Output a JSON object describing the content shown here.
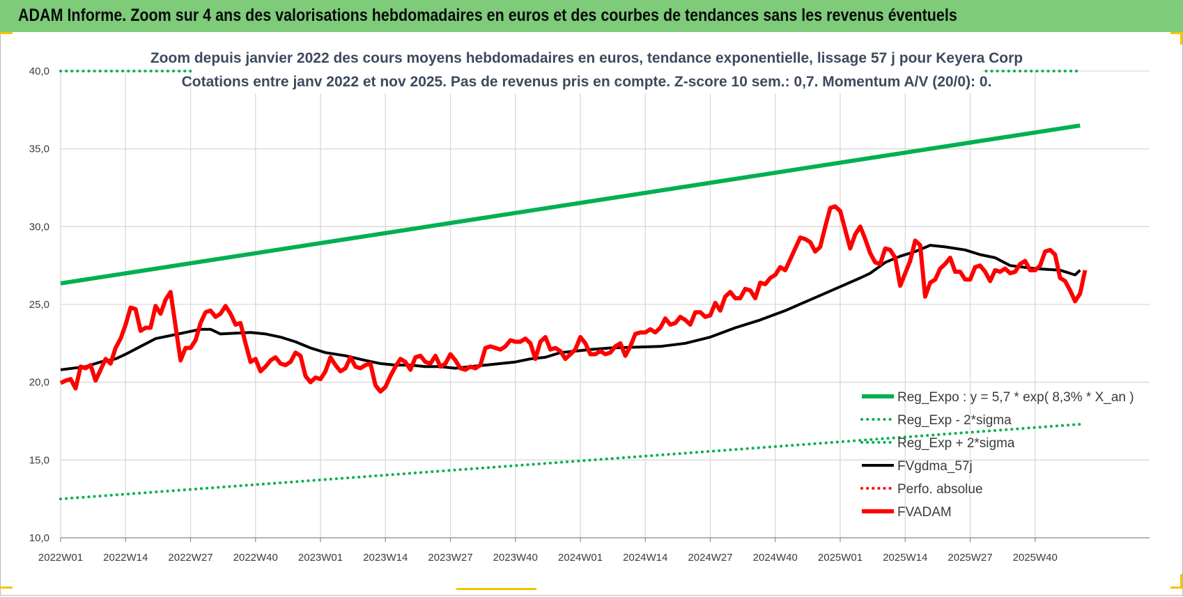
{
  "banner": {
    "title": "ADAM Informe. Zoom sur 4 ans des valorisations hebdomadaires en euros et des courbes de tendances sans les revenus éventuels",
    "color": "#7ecb7a"
  },
  "chart_data": {
    "type": "line",
    "title": "Zoom depuis janvier 2022 des cours moyens hebdomadaires en euros, tendance exponentielle, lissage 57 j pour Keyera Corp",
    "subtitle": "Cotations entre janv 2022 et nov 2025. Pas de revenus pris en compte. Z-score 10 sem.: 0,7. Momentum A/V (20/0): 0.",
    "x_ticks": [
      "2022W01",
      "2022W14",
      "2022W27",
      "2022W40",
      "2023W01",
      "2023W14",
      "2023W27",
      "2023W40",
      "2024W01",
      "2024W14",
      "2024W27",
      "2024W40",
      "2025W01",
      "2025W14",
      "2025W27",
      "2025W40"
    ],
    "x_range_weeks": [
      0,
      204
    ],
    "ylim": [
      10,
      40
    ],
    "y_ticks": [
      "10,0",
      "15,0",
      "20,0",
      "25,0",
      "30,0",
      "35,0",
      "40,0"
    ],
    "grid": true,
    "series": [
      {
        "name": "Reg_Expo : y = 5,7 * exp( 8,3% *  X_an )",
        "style": "solid",
        "color": "#00b050",
        "width": 6,
        "points": [
          [
            0,
            26.35
          ],
          [
            204,
            36.5
          ]
        ]
      },
      {
        "name": "Reg_Exp - 2*sigma",
        "style": "dotted",
        "color": "#00b050",
        "width": 4,
        "points": [
          [
            0,
            12.5
          ],
          [
            204,
            17.3
          ]
        ]
      },
      {
        "name": "Reg_Exp + 2*sigma",
        "style": "dotted",
        "color": "#00b050",
        "width": 4,
        "points": [
          [
            0,
            40.0
          ],
          [
            204,
            40.0
          ]
        ]
      },
      {
        "name": "FVgdma_57j",
        "style": "solid",
        "color": "#000000",
        "width": 4,
        "points": [
          [
            0,
            20.8
          ],
          [
            5,
            21.0
          ],
          [
            8,
            21.3
          ],
          [
            11,
            21.5
          ],
          [
            13,
            21.8
          ],
          [
            16,
            22.3
          ],
          [
            19,
            22.8
          ],
          [
            22,
            23.0
          ],
          [
            25,
            23.2
          ],
          [
            28,
            23.4
          ],
          [
            30,
            23.4
          ],
          [
            32,
            23.1
          ],
          [
            35,
            23.15
          ],
          [
            38,
            23.2
          ],
          [
            41,
            23.1
          ],
          [
            44,
            22.9
          ],
          [
            47,
            22.6
          ],
          [
            50,
            22.2
          ],
          [
            53,
            21.9
          ],
          [
            57,
            21.7
          ],
          [
            61,
            21.4
          ],
          [
            64,
            21.2
          ],
          [
            67,
            21.1
          ],
          [
            70,
            21.1
          ],
          [
            73,
            21.0
          ],
          [
            76,
            21.0
          ],
          [
            79,
            20.9
          ],
          [
            82,
            21.0
          ],
          [
            85,
            21.1
          ],
          [
            88,
            21.2
          ],
          [
            91,
            21.3
          ],
          [
            94,
            21.5
          ],
          [
            97,
            21.6
          ],
          [
            100,
            21.9
          ],
          [
            103,
            22.0
          ],
          [
            106,
            22.1
          ],
          [
            110,
            22.2
          ],
          [
            115,
            22.25
          ],
          [
            120,
            22.3
          ],
          [
            125,
            22.5
          ],
          [
            130,
            22.9
          ],
          [
            135,
            23.5
          ],
          [
            140,
            24.0
          ],
          [
            145,
            24.6
          ],
          [
            150,
            25.3
          ],
          [
            155,
            26.0
          ],
          [
            160,
            26.7
          ],
          [
            162,
            27.0
          ],
          [
            165,
            27.7
          ],
          [
            168,
            28.1
          ],
          [
            171,
            28.4
          ],
          [
            174,
            28.8
          ],
          [
            177,
            28.7
          ],
          [
            181,
            28.5
          ],
          [
            184,
            28.2
          ],
          [
            187,
            28.0
          ],
          [
            190,
            27.5
          ],
          [
            195,
            27.3
          ],
          [
            200,
            27.2
          ],
          [
            203,
            26.9
          ],
          [
            204,
            27.2
          ]
        ]
      },
      {
        "name": "Perfo. absolue",
        "style": "dotted",
        "color": "#ff0000",
        "width": 4,
        "points": []
      },
      {
        "name": "FVADAM",
        "style": "solid",
        "color": "#ff0000",
        "width": 6,
        "points": [
          [
            0,
            19.95
          ],
          [
            1,
            20.1
          ],
          [
            2,
            20.2
          ],
          [
            3,
            19.6
          ],
          [
            4,
            21.0
          ],
          [
            5,
            20.9
          ],
          [
            6,
            21.1
          ],
          [
            7,
            20.1
          ],
          [
            8,
            20.8
          ],
          [
            9,
            21.5
          ],
          [
            10,
            21.2
          ],
          [
            11,
            22.2
          ],
          [
            12,
            22.8
          ],
          [
            13,
            23.7
          ],
          [
            14,
            24.8
          ],
          [
            15,
            24.7
          ],
          [
            16,
            23.3
          ],
          [
            17,
            23.5
          ],
          [
            18,
            23.5
          ],
          [
            19,
            24.9
          ],
          [
            20,
            24.4
          ],
          [
            21,
            25.3
          ],
          [
            22,
            25.8
          ],
          [
            23,
            23.6
          ],
          [
            24,
            21.4
          ],
          [
            25,
            22.2
          ],
          [
            26,
            22.2
          ],
          [
            27,
            22.7
          ],
          [
            28,
            23.8
          ],
          [
            29,
            24.5
          ],
          [
            30,
            24.6
          ],
          [
            31,
            24.2
          ],
          [
            32,
            24.4
          ],
          [
            33,
            24.9
          ],
          [
            34,
            24.4
          ],
          [
            35,
            23.7
          ],
          [
            36,
            23.8
          ],
          [
            37,
            22.5
          ],
          [
            38,
            21.3
          ],
          [
            39,
            21.5
          ],
          [
            40,
            20.7
          ],
          [
            41,
            21.0
          ],
          [
            42,
            21.4
          ],
          [
            43,
            21.6
          ],
          [
            44,
            21.2
          ],
          [
            45,
            21.1
          ],
          [
            46,
            21.3
          ],
          [
            47,
            21.9
          ],
          [
            48,
            21.7
          ],
          [
            49,
            20.4
          ],
          [
            50,
            20.0
          ],
          [
            51,
            20.3
          ],
          [
            52,
            20.2
          ],
          [
            53,
            20.7
          ],
          [
            54,
            21.6
          ],
          [
            55,
            21.1
          ],
          [
            56,
            20.7
          ],
          [
            57,
            20.9
          ],
          [
            58,
            21.6
          ],
          [
            59,
            21.0
          ],
          [
            60,
            20.9
          ],
          [
            61,
            21.1
          ],
          [
            62,
            21.2
          ],
          [
            63,
            19.8
          ],
          [
            64,
            19.4
          ],
          [
            65,
            19.7
          ],
          [
            66,
            20.4
          ],
          [
            67,
            21.0
          ],
          [
            68,
            21.5
          ],
          [
            69,
            21.3
          ],
          [
            70,
            20.8
          ],
          [
            71,
            21.6
          ],
          [
            72,
            21.7
          ],
          [
            73,
            21.3
          ],
          [
            74,
            21.2
          ],
          [
            75,
            21.7
          ],
          [
            76,
            21.0
          ],
          [
            77,
            21.2
          ],
          [
            78,
            21.8
          ],
          [
            79,
            21.4
          ],
          [
            80,
            20.9
          ],
          [
            81,
            20.8
          ],
          [
            82,
            21.0
          ],
          [
            83,
            20.9
          ],
          [
            84,
            21.1
          ],
          [
            85,
            22.2
          ],
          [
            86,
            22.3
          ],
          [
            87,
            22.2
          ],
          [
            88,
            22.1
          ],
          [
            89,
            22.3
          ],
          [
            90,
            22.7
          ],
          [
            91,
            22.6
          ],
          [
            92,
            22.6
          ],
          [
            93,
            22.8
          ],
          [
            94,
            22.5
          ],
          [
            95,
            21.5
          ],
          [
            96,
            22.6
          ],
          [
            97,
            22.9
          ],
          [
            98,
            22.1
          ],
          [
            99,
            22.2
          ],
          [
            100,
            22.0
          ],
          [
            101,
            21.5
          ],
          [
            102,
            21.8
          ],
          [
            103,
            22.1
          ],
          [
            104,
            22.9
          ],
          [
            105,
            22.5
          ],
          [
            106,
            21.8
          ],
          [
            107,
            21.8
          ],
          [
            108,
            22.0
          ],
          [
            109,
            21.8
          ],
          [
            110,
            21.9
          ],
          [
            111,
            22.3
          ],
          [
            112,
            22.5
          ],
          [
            113,
            21.7
          ],
          [
            114,
            22.3
          ],
          [
            115,
            23.1
          ],
          [
            116,
            23.2
          ],
          [
            117,
            23.2
          ],
          [
            118,
            23.4
          ],
          [
            119,
            23.2
          ],
          [
            120,
            23.5
          ],
          [
            121,
            24.1
          ],
          [
            122,
            23.7
          ],
          [
            123,
            23.8
          ],
          [
            124,
            24.2
          ],
          [
            125,
            24.0
          ],
          [
            126,
            23.7
          ],
          [
            127,
            24.5
          ],
          [
            128,
            24.5
          ],
          [
            129,
            24.2
          ],
          [
            130,
            24.3
          ],
          [
            131,
            25.1
          ],
          [
            132,
            24.6
          ],
          [
            133,
            25.5
          ],
          [
            134,
            25.8
          ],
          [
            135,
            25.4
          ],
          [
            136,
            25.4
          ],
          [
            137,
            26.0
          ],
          [
            138,
            25.9
          ],
          [
            139,
            25.4
          ],
          [
            140,
            26.4
          ],
          [
            141,
            26.3
          ],
          [
            142,
            26.7
          ],
          [
            143,
            26.9
          ],
          [
            144,
            27.4
          ],
          [
            145,
            27.2
          ],
          [
            146,
            27.9
          ],
          [
            147,
            28.6
          ],
          [
            148,
            29.3
          ],
          [
            149,
            29.2
          ],
          [
            150,
            29.0
          ],
          [
            151,
            28.4
          ],
          [
            152,
            28.7
          ],
          [
            153,
            30.0
          ],
          [
            154,
            31.2
          ],
          [
            155,
            31.3
          ],
          [
            156,
            31.0
          ],
          [
            157,
            29.8
          ],
          [
            158,
            28.6
          ],
          [
            159,
            29.5
          ],
          [
            160,
            30.0
          ],
          [
            161,
            29.2
          ],
          [
            162,
            28.3
          ],
          [
            163,
            27.7
          ],
          [
            164,
            27.6
          ],
          [
            165,
            28.6
          ],
          [
            166,
            28.5
          ],
          [
            167,
            28.0
          ],
          [
            168,
            26.2
          ],
          [
            169,
            27.0
          ],
          [
            170,
            27.8
          ],
          [
            171,
            29.1
          ],
          [
            172,
            28.8
          ],
          [
            173,
            25.5
          ],
          [
            174,
            26.4
          ],
          [
            175,
            26.6
          ],
          [
            176,
            27.3
          ],
          [
            177,
            27.6
          ],
          [
            178,
            28.0
          ],
          [
            179,
            27.1
          ],
          [
            180,
            27.1
          ],
          [
            181,
            26.6
          ],
          [
            182,
            26.6
          ],
          [
            183,
            27.4
          ],
          [
            184,
            27.5
          ],
          [
            185,
            27.1
          ],
          [
            186,
            26.5
          ],
          [
            187,
            27.2
          ],
          [
            188,
            27.1
          ],
          [
            189,
            27.3
          ],
          [
            190,
            27.0
          ],
          [
            191,
            27.1
          ],
          [
            192,
            27.6
          ],
          [
            193,
            27.8
          ],
          [
            194,
            27.2
          ],
          [
            195,
            27.2
          ],
          [
            196,
            27.5
          ],
          [
            197,
            28.4
          ],
          [
            198,
            28.5
          ],
          [
            199,
            28.2
          ],
          [
            200,
            26.7
          ],
          [
            201,
            26.5
          ],
          [
            202,
            25.9
          ],
          [
            203,
            25.2
          ],
          [
            204,
            25.7
          ],
          [
            205,
            27.2
          ]
        ]
      }
    ]
  }
}
